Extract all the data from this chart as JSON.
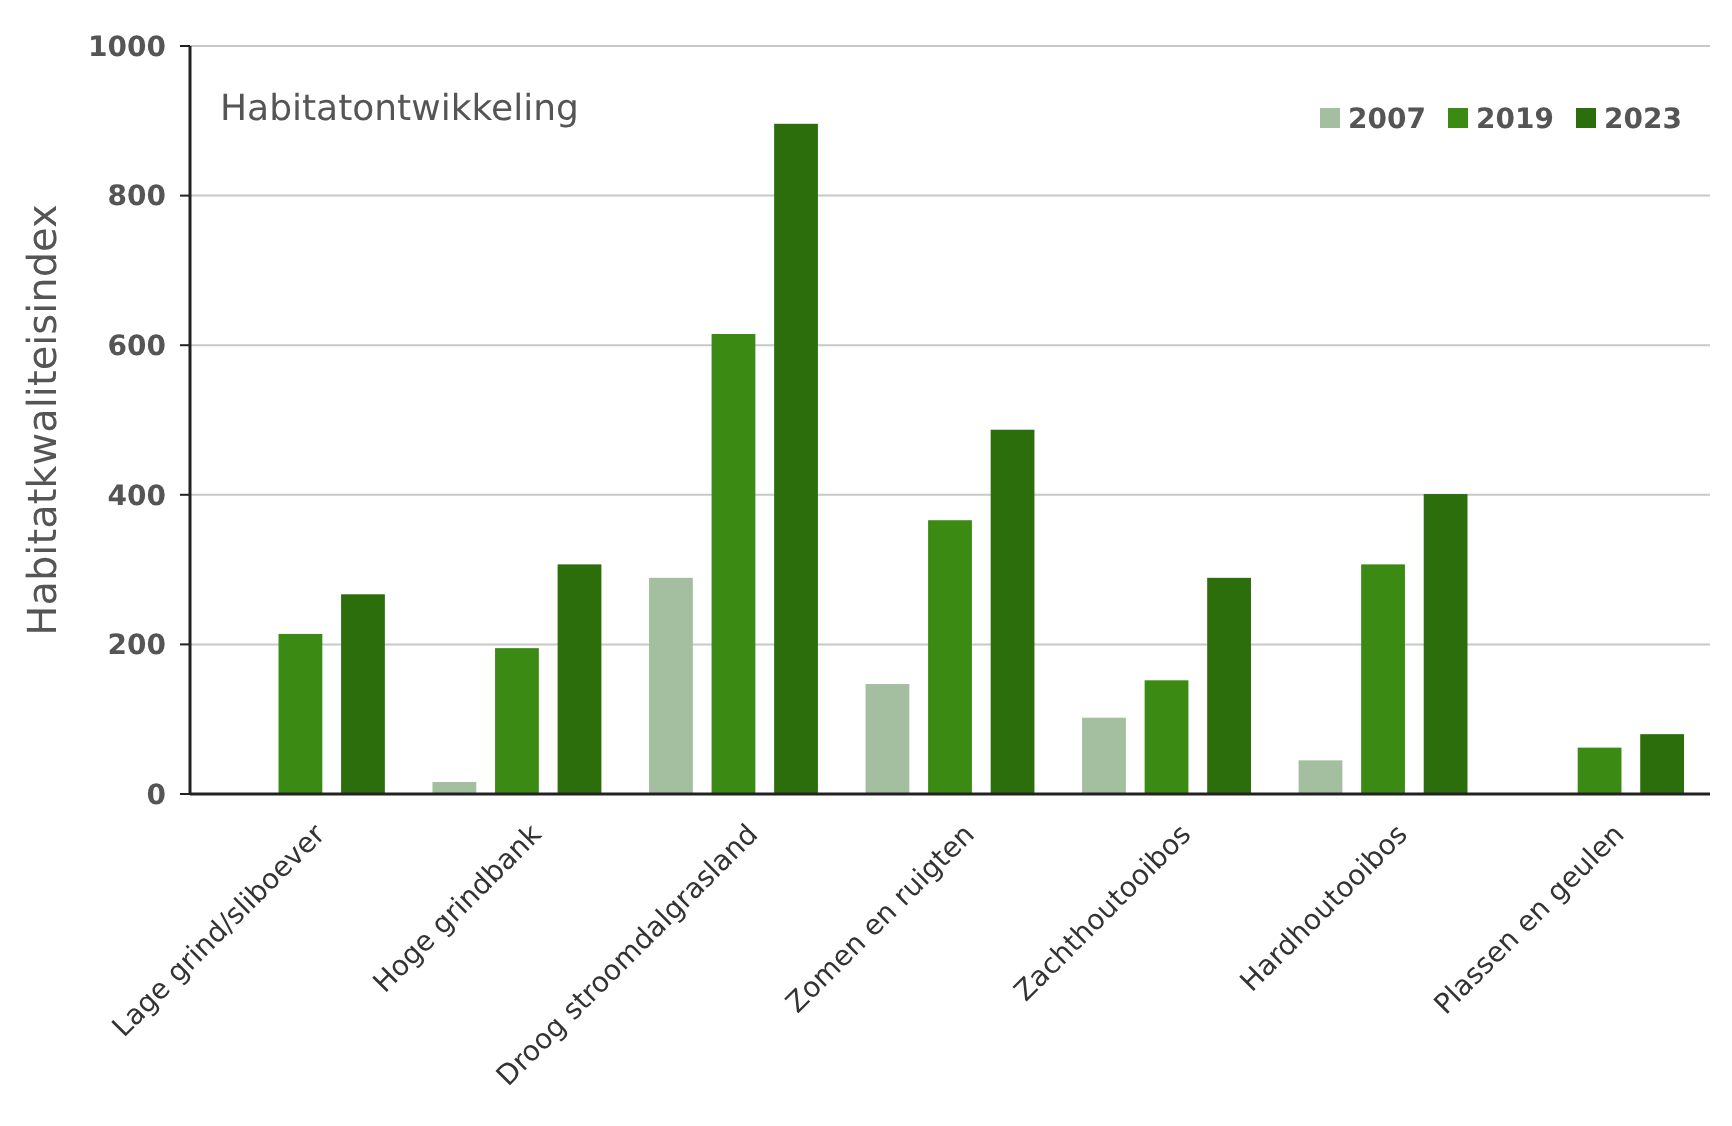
{
  "chart_data": {
    "type": "bar",
    "title": "Habitatontwikkeling",
    "ylabel": "Habitatkwaliteisindex",
    "categories": [
      "Lage grind/sliboever",
      "Hoge grindbank",
      "Droog stroomdalgrasland",
      "Zomen en ruigten",
      "Zachthoutooibos",
      "Hardhoutooibos",
      "Plassen en geulen"
    ],
    "series": [
      {
        "name": "2007",
        "color": "#a3bf9f",
        "values": [
          null,
          16,
          289,
          147,
          102,
          45,
          null
        ]
      },
      {
        "name": "2019",
        "color": "#3a8a13",
        "values": [
          214,
          195,
          615,
          366,
          152,
          307,
          62
        ]
      },
      {
        "name": "2023",
        "color": "#2d6e0c",
        "values": [
          267,
          307,
          896,
          487,
          289,
          401,
          80
        ]
      }
    ],
    "ylim": [
      0,
      1000
    ],
    "yticks": [
      0,
      200,
      400,
      600,
      800,
      1000
    ],
    "grid": "y",
    "legend": "top right"
  }
}
